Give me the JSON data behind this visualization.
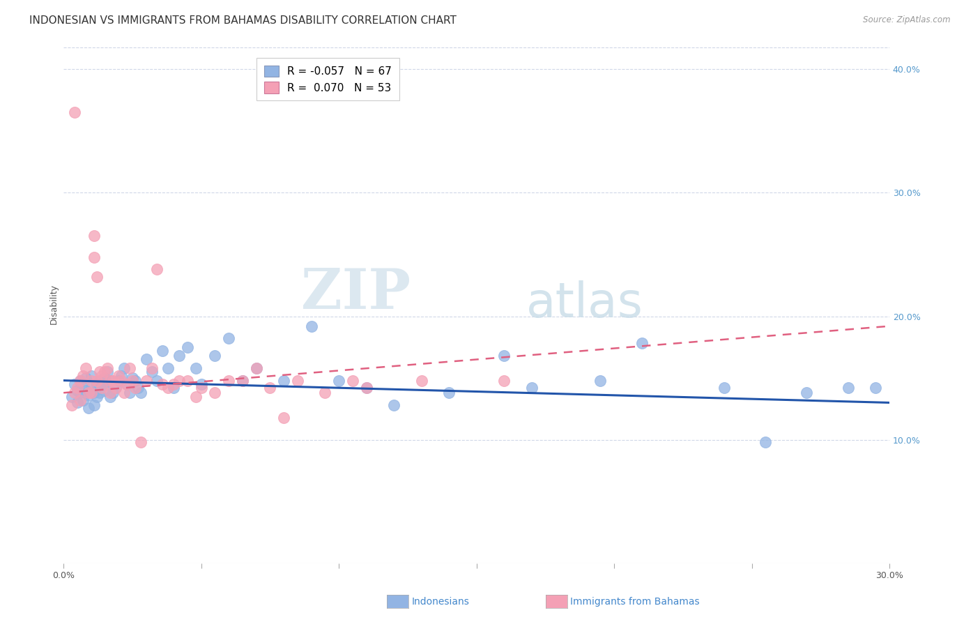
{
  "title": "INDONESIAN VS IMMIGRANTS FROM BAHAMAS DISABILITY CORRELATION CHART",
  "source": "Source: ZipAtlas.com",
  "ylabel": "Disability",
  "x_min": 0.0,
  "x_max": 0.3,
  "y_min": 0.0,
  "y_max": 0.42,
  "legend_r_blue": "-0.057",
  "legend_n_blue": "67",
  "legend_r_pink": "0.070",
  "legend_n_pink": "53",
  "watermark_zip": "ZIP",
  "watermark_atlas": "atlas",
  "blue_color": "#92b4e3",
  "pink_color": "#f4a0b5",
  "blue_line_color": "#2255aa",
  "pink_line_color": "#e06080",
  "indonesians_x": [
    0.003,
    0.004,
    0.005,
    0.005,
    0.006,
    0.006,
    0.007,
    0.007,
    0.008,
    0.008,
    0.009,
    0.009,
    0.01,
    0.01,
    0.011,
    0.011,
    0.012,
    0.012,
    0.013,
    0.013,
    0.014,
    0.015,
    0.015,
    0.016,
    0.016,
    0.017,
    0.017,
    0.018,
    0.019,
    0.02,
    0.021,
    0.022,
    0.023,
    0.024,
    0.025,
    0.026,
    0.027,
    0.028,
    0.03,
    0.032,
    0.034,
    0.036,
    0.038,
    0.04,
    0.042,
    0.045,
    0.048,
    0.05,
    0.055,
    0.06,
    0.065,
    0.07,
    0.08,
    0.09,
    0.1,
    0.11,
    0.12,
    0.14,
    0.16,
    0.17,
    0.195,
    0.21,
    0.24,
    0.255,
    0.27,
    0.285,
    0.295
  ],
  "indonesians_y": [
    0.135,
    0.145,
    0.14,
    0.13,
    0.148,
    0.138,
    0.142,
    0.132,
    0.15,
    0.14,
    0.136,
    0.126,
    0.152,
    0.142,
    0.138,
    0.128,
    0.145,
    0.135,
    0.148,
    0.138,
    0.145,
    0.15,
    0.14,
    0.155,
    0.145,
    0.135,
    0.148,
    0.138,
    0.142,
    0.148,
    0.152,
    0.158,
    0.145,
    0.138,
    0.15,
    0.148,
    0.142,
    0.138,
    0.165,
    0.155,
    0.148,
    0.172,
    0.158,
    0.142,
    0.168,
    0.175,
    0.158,
    0.145,
    0.168,
    0.182,
    0.148,
    0.158,
    0.148,
    0.192,
    0.148,
    0.142,
    0.128,
    0.138,
    0.168,
    0.142,
    0.148,
    0.178,
    0.142,
    0.098,
    0.138,
    0.142,
    0.142
  ],
  "bahamas_x": [
    0.003,
    0.004,
    0.005,
    0.006,
    0.006,
    0.007,
    0.008,
    0.009,
    0.01,
    0.01,
    0.011,
    0.011,
    0.012,
    0.012,
    0.013,
    0.014,
    0.014,
    0.015,
    0.016,
    0.017,
    0.017,
    0.018,
    0.019,
    0.02,
    0.021,
    0.022,
    0.023,
    0.024,
    0.025,
    0.026,
    0.028,
    0.03,
    0.032,
    0.034,
    0.036,
    0.038,
    0.04,
    0.042,
    0.045,
    0.048,
    0.05,
    0.055,
    0.06,
    0.065,
    0.07,
    0.075,
    0.08,
    0.085,
    0.095,
    0.105,
    0.11,
    0.13,
    0.16
  ],
  "bahamas_y": [
    0.128,
    0.138,
    0.142,
    0.148,
    0.132,
    0.152,
    0.158,
    0.138,
    0.148,
    0.138,
    0.265,
    0.248,
    0.232,
    0.148,
    0.155,
    0.152,
    0.142,
    0.155,
    0.158,
    0.148,
    0.138,
    0.148,
    0.142,
    0.152,
    0.148,
    0.138,
    0.145,
    0.158,
    0.148,
    0.142,
    0.098,
    0.148,
    0.158,
    0.238,
    0.145,
    0.142,
    0.145,
    0.148,
    0.148,
    0.135,
    0.142,
    0.138,
    0.148,
    0.148,
    0.158,
    0.142,
    0.118,
    0.148,
    0.138,
    0.148,
    0.142,
    0.148,
    0.148
  ],
  "bahamas_outlier_x": [
    0.004
  ],
  "bahamas_outlier_y": [
    0.365
  ],
  "grid_color": "#d0d8e8",
  "background_color": "#ffffff",
  "title_fontsize": 11,
  "axis_label_fontsize": 9,
  "tick_fontsize": 9,
  "blue_intercept": 0.148,
  "blue_slope": -0.06,
  "pink_intercept": 0.138,
  "pink_slope": 0.18
}
